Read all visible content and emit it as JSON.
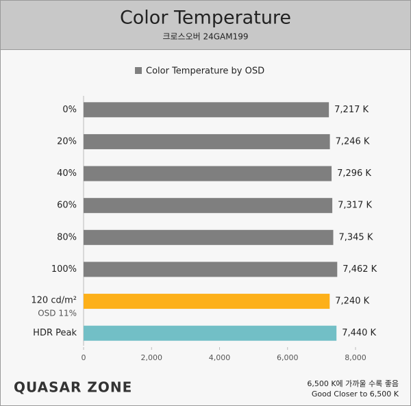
{
  "chart_data": {
    "type": "barh",
    "title": "Color Temperature",
    "subtitle": "크로스오버 24GAM199",
    "categories": [
      "0%",
      "20%",
      "40%",
      "60%",
      "80%",
      "100%",
      [
        "120 cd/m²",
        "OSD 11%"
      ],
      "HDR Peak"
    ],
    "series": [
      {
        "name": "Color Temperature by OSD",
        "color": "#7f7f7f",
        "colors": [
          "#7f7f7f",
          "#7f7f7f",
          "#7f7f7f",
          "#7f7f7f",
          "#7f7f7f",
          "#7f7f7f",
          "#fdb01a",
          "#72bfc6"
        ],
        "values": [
          7217,
          7246,
          7296,
          7317,
          7345,
          7462,
          7240,
          7440
        ],
        "value_labels": [
          "7,217 K",
          "7,246 K",
          "7,296 K",
          "7,317 K",
          "7,345 K",
          "7,462 K",
          "7,240 K",
          "7,440 K"
        ]
      }
    ],
    "xlim": [
      0,
      8000
    ],
    "xticks": [
      0,
      {
        "value": 2000,
        "label": "2,000"
      },
      {
        "value": 4000,
        "label": "4,000"
      },
      {
        "value": 6000,
        "label": "6,000"
      },
      {
        "value": 8000,
        "label": "8,000"
      }
    ],
    "legend": "top",
    "logo": "QUASAR ZONE",
    "notes": [
      "6,500 K에 가까울 수록 좋음",
      "Good Closer to 6,500 K"
    ]
  }
}
